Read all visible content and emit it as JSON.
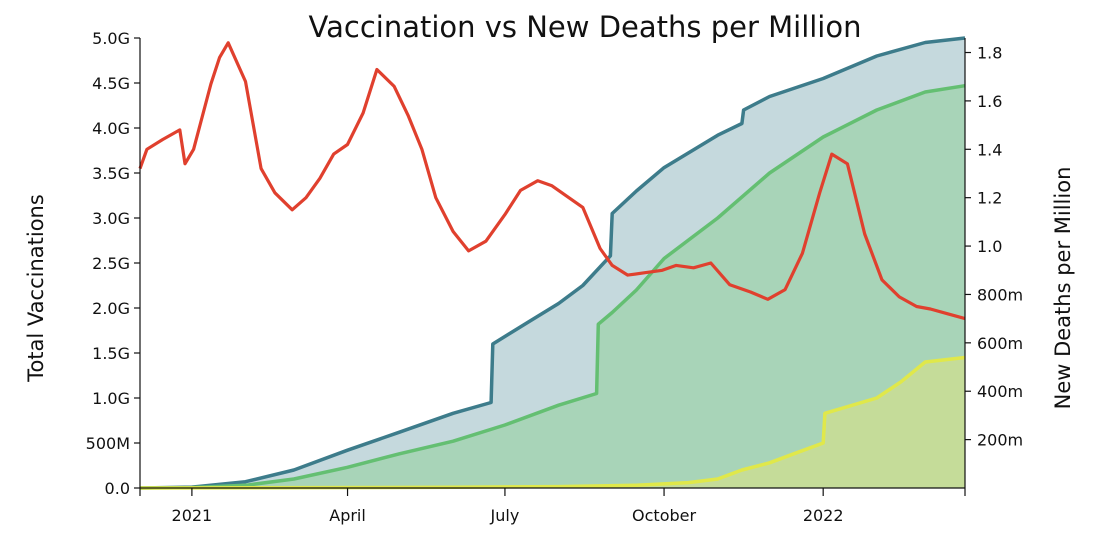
{
  "chart_data": {
    "type": "area",
    "title": "Vaccination vs New Deaths per Million",
    "ylabel_left": "Total Vaccinations",
    "ylabel_right": "New Deaths per Million",
    "xlabel": "",
    "x_ticks": [
      {
        "date": "2021-01-01",
        "label": "2021"
      },
      {
        "date": "2021-04-01",
        "label": "April"
      },
      {
        "date": "2021-07-01",
        "label": "July"
      },
      {
        "date": "2021-10-01",
        "label": "October"
      },
      {
        "date": "2022-01-01",
        "label": "2022"
      }
    ],
    "xlim": [
      "2020-12-02",
      "2022-03-24"
    ],
    "y_left_ticks": [
      "0.0",
      "500M",
      "1.0G",
      "1.5G",
      "2.0G",
      "2.5G",
      "3.0G",
      "3.5G",
      "4.0G",
      "4.5G",
      "5.0G"
    ],
    "ylim_left": [
      0,
      5000000000
    ],
    "y_right_ticks": [
      "200m",
      "400m",
      "600m",
      "800m",
      "1.0",
      "1.2",
      "1.4",
      "1.6",
      "1.8"
    ],
    "ylim_right": [
      0,
      1.86
    ],
    "colors": {
      "total_vaccinations": "#3d7c8b",
      "people_vaccinated": "#64bf72",
      "people_fully_vaccinated": "#e0e84a",
      "new_deaths_per_million": "#e0402e"
    },
    "series": [
      {
        "axis": "left",
        "x": [
          "2020-12-02",
          "2021-01-01",
          "2021-02-01",
          "2021-03-01",
          "2021-04-01",
          "2021-05-01",
          "2021-06-01",
          "2021-06-23",
          "2021-06-24",
          "2021-07-15",
          "2021-08-01",
          "2021-08-15",
          "2021-08-31",
          "2021-09-01",
          "2021-09-15",
          "2021-10-01",
          "2021-11-01",
          "2021-11-15",
          "2021-11-16",
          "2021-12-01",
          "2022-01-01",
          "2022-02-01",
          "2022-03-01",
          "2022-03-24"
        ],
        "values": [
          0,
          10000000,
          70000000,
          200000000,
          420000000,
          620000000,
          830000000,
          950000000,
          1600000000,
          1850000000,
          2050000000,
          2250000000,
          2580000000,
          3050000000,
          3300000000,
          3560000000,
          3920000000,
          4050000000,
          4200000000,
          4350000000,
          4550000000,
          4800000000,
          4950000000,
          5000000000
        ]
      },
      {
        "axis": "left",
        "x": [
          "2020-12-02",
          "2021-01-01",
          "2021-02-01",
          "2021-03-01",
          "2021-04-01",
          "2021-05-01",
          "2021-06-01",
          "2021-07-01",
          "2021-08-01",
          "2021-08-23",
          "2021-08-24",
          "2021-09-01",
          "2021-09-15",
          "2021-10-01",
          "2021-11-01",
          "2021-12-01",
          "2022-01-01",
          "2022-02-01",
          "2022-03-01",
          "2022-03-24"
        ],
        "values": [
          0,
          5000000,
          30000000,
          100000000,
          230000000,
          380000000,
          520000000,
          700000000,
          920000000,
          1050000000,
          1820000000,
          1950000000,
          2200000000,
          2550000000,
          3000000000,
          3500000000,
          3900000000,
          4200000000,
          4400000000,
          4470000000
        ]
      },
      {
        "axis": "left",
        "x": [
          "2020-12-02",
          "2021-06-01",
          "2021-08-01",
          "2021-09-15",
          "2021-10-15",
          "2021-11-01",
          "2021-11-15",
          "2021-12-01",
          "2021-12-15",
          "2022-01-01",
          "2022-01-02",
          "2022-02-01",
          "2022-02-15",
          "2022-03-01",
          "2022-03-24"
        ],
        "values": [
          0,
          8000000,
          15000000,
          30000000,
          60000000,
          100000000,
          200000000,
          280000000,
          380000000,
          500000000,
          830000000,
          1000000000,
          1180000000,
          1400000000,
          1450000000
        ]
      },
      {
        "axis": "right",
        "x": [
          "2020-12-02",
          "2020-12-06",
          "2020-12-15",
          "2020-12-25",
          "2020-12-28",
          "2021-01-02",
          "2021-01-12",
          "2021-01-17",
          "2021-01-22",
          "2021-02-01",
          "2021-02-10",
          "2021-02-18",
          "2021-02-28",
          "2021-03-08",
          "2021-03-16",
          "2021-03-24",
          "2021-04-01",
          "2021-04-10",
          "2021-04-18",
          "2021-04-28",
          "2021-05-06",
          "2021-05-14",
          "2021-05-22",
          "2021-06-01",
          "2021-06-10",
          "2021-06-20",
          "2021-07-01",
          "2021-07-10",
          "2021-07-20",
          "2021-07-28",
          "2021-08-05",
          "2021-08-15",
          "2021-08-25",
          "2021-09-01",
          "2021-09-10",
          "2021-09-20",
          "2021-09-30",
          "2021-10-08",
          "2021-10-18",
          "2021-10-28",
          "2021-11-08",
          "2021-11-20",
          "2021-11-30",
          "2021-12-10",
          "2021-12-20",
          "2021-12-30",
          "2022-01-06",
          "2022-01-15",
          "2022-01-25",
          "2022-02-04",
          "2022-02-14",
          "2022-02-24",
          "2022-03-04",
          "2022-03-14",
          "2022-03-24"
        ],
        "values": [
          1.32,
          1.4,
          1.44,
          1.48,
          1.34,
          1.4,
          1.67,
          1.78,
          1.84,
          1.68,
          1.32,
          1.22,
          1.15,
          1.2,
          1.28,
          1.38,
          1.42,
          1.55,
          1.73,
          1.66,
          1.54,
          1.4,
          1.2,
          1.06,
          0.98,
          1.02,
          1.13,
          1.23,
          1.27,
          1.25,
          1.21,
          1.16,
          0.99,
          0.92,
          0.88,
          0.89,
          0.9,
          0.92,
          0.91,
          0.93,
          0.84,
          0.81,
          0.78,
          0.82,
          0.97,
          1.22,
          1.38,
          1.34,
          1.05,
          0.86,
          0.79,
          0.75,
          0.74,
          0.72,
          0.7
        ]
      }
    ]
  }
}
